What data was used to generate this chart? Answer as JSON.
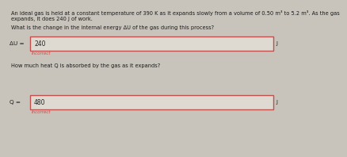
{
  "background_color": "#c8c4bc",
  "title_lines": [
    "An ideal gas is held at a constant temperature of 390 K as it expands slowly from a volume of 0.50 m³ to 5.2 m³. As the gas",
    "expands, it does 240 J of work."
  ],
  "question1": "What is the change in the internal energy ΔU of the gas during this process?",
  "label1": "ΔU =",
  "value1": "240",
  "unit1": "J",
  "incorrect1": "Incorrect",
  "question2": "How much heat Q is absorbed by the gas as it expands?",
  "label2": "Q =",
  "value2": "480",
  "unit2": "J",
  "incorrect2": "Incorrect",
  "box_face_color": "#dedad2",
  "box_edge_color": "#c0504d",
  "text_color": "#1a1a1a",
  "incorrect_color": "#c0504d",
  "value_color": "#222222",
  "font_size_body": 4.8,
  "font_size_label": 5.2,
  "font_size_value": 5.5,
  "font_size_incorrect": 4.0
}
